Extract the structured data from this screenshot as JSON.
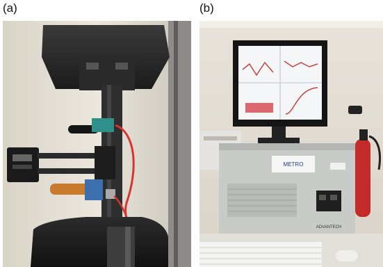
{
  "figure": {
    "panels": [
      {
        "label": "(a)"
      },
      {
        "label": "(b)"
      }
    ],
    "photo_b": {
      "sticker_text": "METRO",
      "computer_brand": "ADVANTECH"
    }
  }
}
